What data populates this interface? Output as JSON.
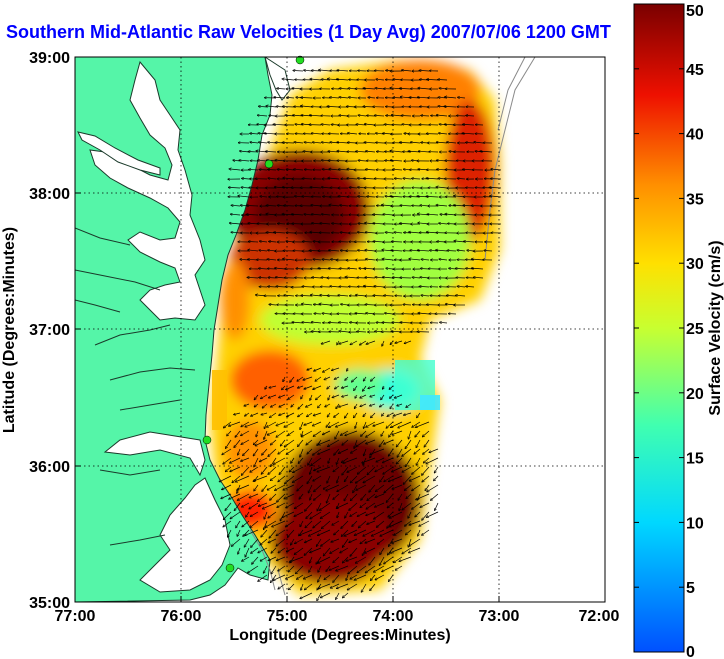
{
  "title": "Southern Mid-Atlantic Raw Velocities (1 Day Avg) 2007/07/06 1200 GMT",
  "x_axis": {
    "label": "Longitude (Degrees:Minutes)",
    "ticks": [
      "77:00",
      "76:00",
      "75:00",
      "74:00",
      "73:00",
      "72:00"
    ]
  },
  "y_axis": {
    "label": "Latitude (Degrees:Minutes)",
    "ticks": [
      "39:00",
      "38:00",
      "37:00",
      "36:00",
      "35:00"
    ]
  },
  "colorbar": {
    "label": "Surface Velocity (cm/s)",
    "ticks": [
      "50",
      "45",
      "40",
      "35",
      "30",
      "25",
      "20",
      "15",
      "10",
      "5",
      "0"
    ],
    "min": 0,
    "max": 50
  },
  "colors": {
    "land": "#55f5a8",
    "water": "#ffffff",
    "coast": "#1a3a2a",
    "title": "#0000ff",
    "station": "#22dd22"
  }
}
